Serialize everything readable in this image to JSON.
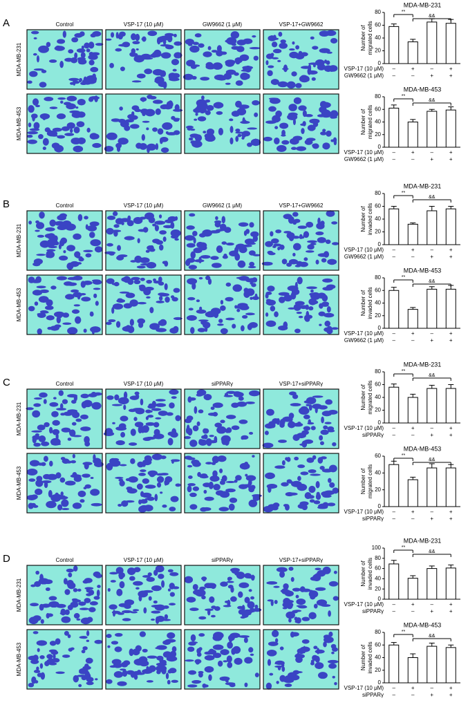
{
  "panels": [
    {
      "label": "A",
      "columns": [
        "Control",
        "VSP-17 (10 μM)",
        "GW9662 (1 μM)",
        "VSP-17+GW9662"
      ],
      "rows": [
        "MDA-MB-231",
        "MDA-MB-453"
      ]
    },
    {
      "label": "B",
      "columns": [
        "Control",
        "VSP-17 (10 μM)",
        "GW9662 (1 μM)",
        "VSP-17+GW9662"
      ],
      "rows": [
        "MDA-MB-231",
        "MDA-MB-453"
      ]
    },
    {
      "label": "C",
      "columns": [
        "Control",
        "VSP-17 (10 μM)",
        "siPPARγ",
        "VSP-17+siPPARγ"
      ],
      "rows": [
        "MDA-MB-231",
        "MDA-MB-453"
      ]
    },
    {
      "label": "D",
      "columns": [
        "Control",
        "VSP-17 (10 μM)",
        "siPPARγ",
        "VSP-17+siPPARγ"
      ],
      "rows": [
        "MDA-MB-231",
        "MDA-MB-453"
      ]
    }
  ],
  "chart_data": [
    {
      "type": "bar",
      "title": "MDA-MB-231",
      "y_label": [
        "Number of",
        "migrated cells"
      ],
      "categories": [
        null,
        null,
        null,
        null
      ],
      "values": [
        58,
        34,
        65,
        63
      ],
      "errors": [
        4,
        4,
        5,
        6
      ],
      "ylim": [
        0,
        80
      ],
      "yticks": [
        0,
        20,
        40,
        60,
        80
      ],
      "color": "#ffffff",
      "significance": [
        "**",
        "&&"
      ],
      "conditions": [
        {
          "name": "VSP-17 (10 μM)",
          "signs": [
            "–",
            "+",
            "–",
            "+"
          ]
        },
        {
          "name": "GW9662 (1 μM)",
          "signs": [
            "–",
            "–",
            "+",
            "+"
          ]
        }
      ]
    },
    {
      "type": "bar",
      "title": "MDA-MB-453",
      "y_label": [
        "Number of",
        "migrated cells"
      ],
      "categories": [
        null,
        null,
        null,
        null
      ],
      "values": [
        62,
        40,
        57,
        59
      ],
      "errors": [
        5,
        4,
        3,
        5
      ],
      "ylim": [
        0,
        80
      ],
      "yticks": [
        0,
        20,
        40,
        60,
        80
      ],
      "color": "#ffffff",
      "significance": [
        "**",
        "&&"
      ],
      "conditions": [
        {
          "name": "VSP-17 (10 μM)",
          "signs": [
            "–",
            "+",
            "–",
            "+"
          ]
        },
        {
          "name": "GW9662 (1 μM)",
          "signs": [
            "–",
            "–",
            "+",
            "+"
          ]
        }
      ]
    },
    {
      "type": "bar",
      "title": "MDA-MB-231",
      "y_label": [
        "Number of",
        "invaded cells"
      ],
      "categories": [
        null,
        null,
        null,
        null
      ],
      "values": [
        56,
        32,
        53,
        56
      ],
      "errors": [
        4,
        2,
        7,
        4
      ],
      "ylim": [
        0,
        80
      ],
      "yticks": [
        0,
        20,
        40,
        60,
        80
      ],
      "color": "#ffffff",
      "significance": [
        "**",
        "&&"
      ],
      "conditions": [
        {
          "name": "VSP-17 (10 μM)",
          "signs": [
            "–",
            "+",
            "–",
            "+"
          ]
        },
        {
          "name": "GW9662 (1 μM)",
          "signs": [
            "–",
            "–",
            "+",
            "+"
          ]
        }
      ]
    },
    {
      "type": "bar",
      "title": "MDA-MB-453",
      "y_label": [
        "Number of",
        "invaded cells"
      ],
      "categories": [
        null,
        null,
        null,
        null
      ],
      "values": [
        60,
        30,
        62,
        62
      ],
      "errors": [
        5,
        3,
        4,
        6
      ],
      "ylim": [
        0,
        80
      ],
      "yticks": [
        0,
        20,
        40,
        60,
        80
      ],
      "color": "#ffffff",
      "significance": [
        "**",
        "&&"
      ],
      "conditions": [
        {
          "name": "VSP-17 (10 μM)",
          "signs": [
            "–",
            "+",
            "–",
            "+"
          ]
        },
        {
          "name": "GW9662 (1 μM)",
          "signs": [
            "–",
            "–",
            "+",
            "+"
          ]
        }
      ]
    },
    {
      "type": "bar",
      "title": "MDA-MB-231",
      "y_label": [
        "Number of",
        "migrated cells"
      ],
      "categories": [
        null,
        null,
        null,
        null
      ],
      "values": [
        56,
        40,
        54,
        54
      ],
      "errors": [
        5,
        5,
        5,
        6
      ],
      "ylim": [
        0,
        80
      ],
      "yticks": [
        0,
        20,
        40,
        60,
        80
      ],
      "color": "#ffffff",
      "significance": [
        "**",
        "&&"
      ],
      "conditions": [
        {
          "name": "VSP-17 (10 μM)",
          "signs": [
            "–",
            "+",
            "–",
            "+"
          ]
        },
        {
          "name": "siPPARγ",
          "signs": [
            "–",
            "–",
            "+",
            "+"
          ]
        }
      ]
    },
    {
      "type": "bar",
      "title": "MDA-MB-453",
      "y_label": [
        "Number of",
        "migrated cells"
      ],
      "categories": [
        null,
        null,
        null,
        null
      ],
      "values": [
        50,
        32,
        46,
        46
      ],
      "errors": [
        4,
        3,
        5,
        4
      ],
      "ylim": [
        0,
        60
      ],
      "yticks": [
        0,
        20,
        40,
        60
      ],
      "color": "#ffffff",
      "significance": [
        "**",
        "&&"
      ],
      "conditions": [
        {
          "name": "VSP-17 (10 μM)",
          "signs": [
            "–",
            "+",
            "–",
            "+"
          ]
        },
        {
          "name": "siPPARγ",
          "signs": [
            "–",
            "–",
            "+",
            "+"
          ]
        }
      ]
    },
    {
      "type": "bar",
      "title": "MDA-MB-231",
      "y_label": [
        "Number of",
        "invaded cells"
      ],
      "categories": [
        null,
        null,
        null,
        null
      ],
      "values": [
        69,
        41,
        60,
        61
      ],
      "errors": [
        7,
        5,
        5,
        6
      ],
      "ylim": [
        0,
        100
      ],
      "yticks": [
        0,
        20,
        40,
        60,
        80,
        100
      ],
      "color": "#ffffff",
      "significance": [
        "**",
        "&&"
      ],
      "conditions": [
        {
          "name": "VSP-17 (10 μM)",
          "signs": [
            "–",
            "+",
            "–",
            "+"
          ]
        },
        {
          "name": "siPPARγ",
          "signs": [
            "–",
            "–",
            "+",
            "+"
          ]
        }
      ]
    },
    {
      "type": "bar",
      "title": "MDA-MB-453",
      "y_label": [
        "Number of",
        "invaded cells"
      ],
      "categories": [
        null,
        null,
        null,
        null
      ],
      "values": [
        60,
        40,
        58,
        56
      ],
      "errors": [
        4,
        6,
        5,
        4
      ],
      "ylim": [
        0,
        80
      ],
      "yticks": [
        0,
        20,
        40,
        60,
        80
      ],
      "color": "#ffffff",
      "significance": [
        "**",
        "&&"
      ],
      "conditions": [
        {
          "name": "VSP-17 (10 μM)",
          "signs": [
            "–",
            "+",
            "–",
            "+"
          ]
        },
        {
          "name": "siPPARγ",
          "signs": [
            "–",
            "–",
            "+",
            "+"
          ]
        }
      ]
    }
  ]
}
